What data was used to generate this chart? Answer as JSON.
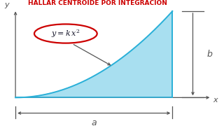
{
  "title": "HALLAR CENTROIDE POR INTEGRACIÓN",
  "title_color": "#cc0000",
  "title_fontsize": 6.5,
  "bg_color": "#ffffff",
  "curve_fill_color": "#a8dff0",
  "curve_edge_color": "#2ab0d8",
  "axes_color": "#555555",
  "annotation_ellipse_color": "#cc0000",
  "dim_a_label": "a",
  "dim_b_label": "b",
  "xlim": [
    -0.07,
    1.3
  ],
  "ylim": [
    -0.3,
    1.1
  ],
  "fig_w": 3.2,
  "fig_h": 1.8,
  "fig_dpi": 100
}
